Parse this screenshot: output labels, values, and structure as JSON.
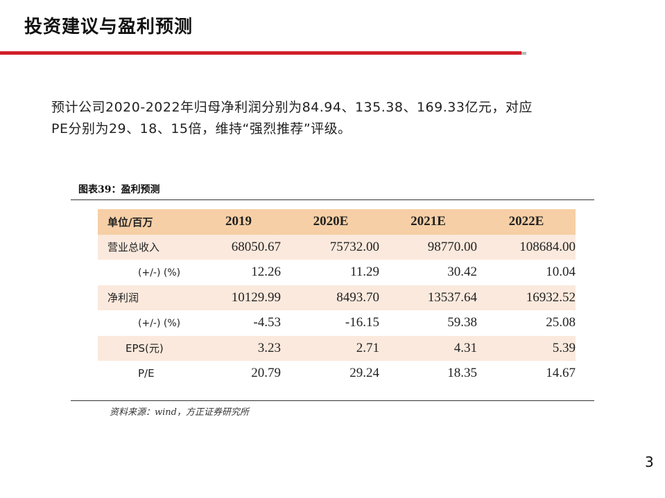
{
  "slide": {
    "title": "投资建议与盈利预测",
    "body_line1": "预计公司2020-2022年归母净利润分别为84.94、135.38、169.33亿元，对应",
    "body_line2": "PE分别为29、18、15倍，维持“强烈推荐”评级。",
    "figure_label": "图表39：盈利预测",
    "source": "资料来源：wind，方正证券研究所",
    "page_number": "3",
    "accent_color": "#d0202a",
    "header_fill": "#f6cfa6",
    "band_fill": "#fbe9dd"
  },
  "table": {
    "headers": [
      "单位/百万",
      "2019",
      "2020E",
      "2021E",
      "2022E"
    ],
    "rows": [
      {
        "label": "营业总收入",
        "values": [
          "68050.67",
          "75732.00",
          "98770.00",
          "108684.00"
        ]
      },
      {
        "label": "(+/-) (%)",
        "values": [
          "12.26",
          "11.29",
          "30.42",
          "10.04"
        ]
      },
      {
        "label": "净利润",
        "values": [
          "10129.99",
          "8493.70",
          "13537.64",
          "16932.52"
        ]
      },
      {
        "label": "(+/-) (%)",
        "values": [
          "-4.53",
          "-16.15",
          "59.38",
          "25.08"
        ]
      },
      {
        "label": "EPS(元)",
        "values": [
          "3.23",
          "2.71",
          "4.31",
          "5.39"
        ]
      },
      {
        "label": "P/E",
        "values": [
          "20.79",
          "29.24",
          "18.35",
          "14.67"
        ]
      }
    ]
  }
}
